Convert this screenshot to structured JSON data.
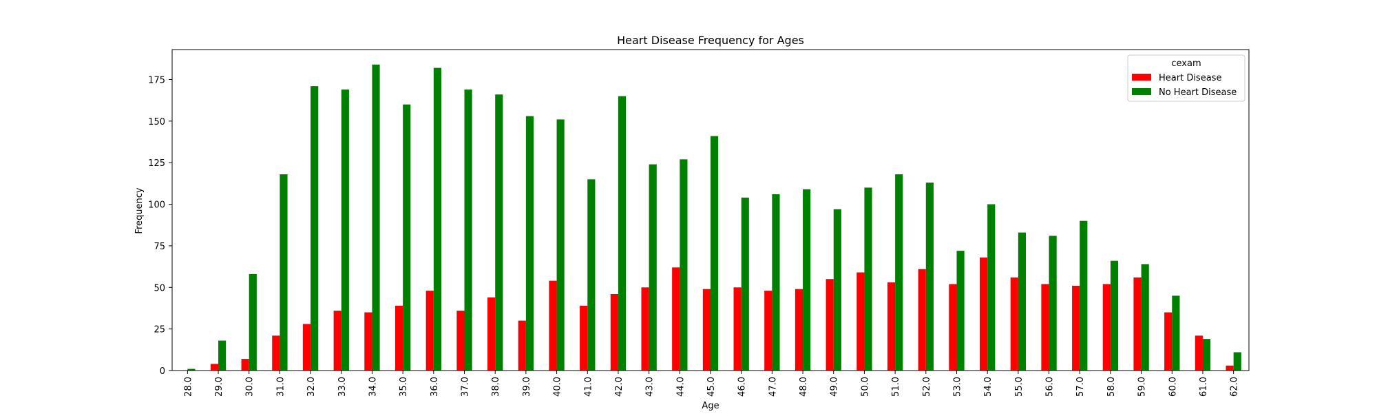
{
  "chart_data": {
    "type": "bar",
    "title": "Heart Disease Frequency for Ages",
    "xlabel": "Age",
    "ylabel": "Frequency",
    "legend_title": "cexam",
    "legend_position": "top-right",
    "grid": false,
    "ylim": [
      0,
      193
    ],
    "yticks": [
      0,
      25,
      50,
      75,
      100,
      125,
      150,
      175
    ],
    "categories": [
      "28.0",
      "29.0",
      "30.0",
      "31.0",
      "32.0",
      "33.0",
      "34.0",
      "35.0",
      "36.0",
      "37.0",
      "38.0",
      "39.0",
      "40.0",
      "41.0",
      "42.0",
      "43.0",
      "44.0",
      "45.0",
      "46.0",
      "47.0",
      "48.0",
      "49.0",
      "50.0",
      "51.0",
      "52.0",
      "53.0",
      "54.0",
      "55.0",
      "56.0",
      "57.0",
      "58.0",
      "59.0",
      "60.0",
      "61.0",
      "62.0"
    ],
    "series": [
      {
        "name": "Heart Disease",
        "color": "#ff0000",
        "values": [
          0,
          4,
          7,
          21,
          28,
          36,
          35,
          39,
          48,
          36,
          44,
          30,
          54,
          39,
          46,
          50,
          62,
          49,
          50,
          48,
          49,
          55,
          59,
          53,
          61,
          52,
          68,
          56,
          52,
          51,
          52,
          56,
          35,
          21,
          3
        ]
      },
      {
        "name": "No Heart Disease",
        "color": "#008000",
        "values": [
          1,
          18,
          58,
          118,
          171,
          169,
          184,
          160,
          182,
          169,
          166,
          153,
          151,
          115,
          165,
          124,
          127,
          141,
          104,
          106,
          109,
          97,
          110,
          118,
          113,
          72,
          100,
          83,
          81,
          90,
          66,
          64,
          45,
          19,
          11
        ]
      }
    ]
  }
}
